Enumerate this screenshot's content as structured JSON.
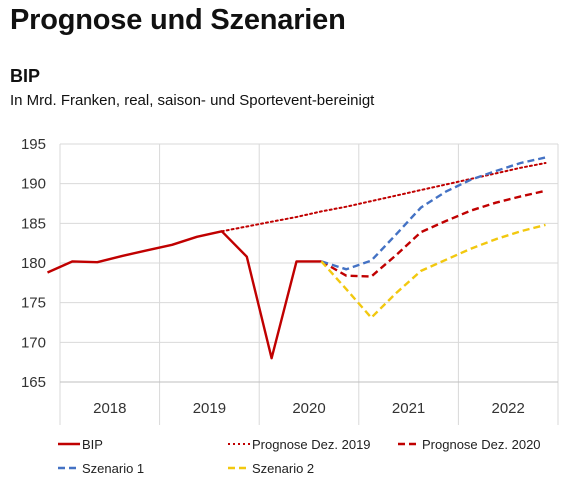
{
  "page": {
    "title": "Prognose und Szenarien"
  },
  "chart_data": {
    "type": "line",
    "title": "BIP",
    "subtitle": "In Mrd. Franken, real, saison- und Sportevent-bereinigt",
    "xlabel": "",
    "ylabel": "",
    "x_tick_labels": [
      "2018",
      "2019",
      "2020",
      "2021",
      "2022"
    ],
    "ylim": [
      165,
      195
    ],
    "y_ticks": [
      165,
      170,
      175,
      180,
      185,
      190,
      195
    ],
    "grid": true,
    "legend_position": "bottom",
    "series": [
      {
        "name": "BIP",
        "color": "#c00000",
        "style": "solid",
        "x": [
          "2017-Q4",
          "2018-Q1",
          "2018-Q2",
          "2018-Q3",
          "2018-Q4",
          "2019-Q1",
          "2019-Q2",
          "2019-Q3",
          "2019-Q4",
          "2020-Q1",
          "2020-Q2",
          "2020-Q3"
        ],
        "values": [
          178.8,
          180.2,
          180.1,
          180.9,
          181.6,
          182.3,
          183.3,
          184.0,
          180.8,
          168.0,
          180.2,
          180.2
        ]
      },
      {
        "name": "Prognose Dez. 2019",
        "color": "#c00000",
        "style": "dotted",
        "x": [
          "2019-Q3",
          "2019-Q4",
          "2020-Q1",
          "2020-Q2",
          "2020-Q3",
          "2020-Q4",
          "2021-Q1",
          "2021-Q2",
          "2021-Q3",
          "2021-Q4",
          "2022-Q1",
          "2022-Q2",
          "2022-Q3",
          "2022-Q4"
        ],
        "values": [
          184.0,
          184.6,
          185.2,
          185.8,
          186.5,
          187.1,
          187.8,
          188.5,
          189.2,
          189.9,
          190.6,
          191.3,
          192.0,
          192.6
        ]
      },
      {
        "name": "Prognose Dez. 2020",
        "color": "#c00000",
        "style": "dashed",
        "x": [
          "2020-Q3",
          "2020-Q4",
          "2021-Q1",
          "2021-Q2",
          "2021-Q3",
          "2021-Q4",
          "2022-Q1",
          "2022-Q2",
          "2022-Q3",
          "2022-Q4"
        ],
        "values": [
          180.2,
          178.4,
          178.3,
          181.0,
          183.9,
          185.3,
          186.6,
          187.6,
          188.4,
          189.1
        ]
      },
      {
        "name": "Szenario 1",
        "color": "#4472c4",
        "style": "dashed",
        "x": [
          "2020-Q3",
          "2020-Q4",
          "2021-Q1",
          "2021-Q2",
          "2021-Q3",
          "2021-Q4",
          "2022-Q1",
          "2022-Q2",
          "2022-Q3",
          "2022-Q4"
        ],
        "values": [
          180.2,
          179.2,
          180.3,
          183.6,
          187.0,
          189.0,
          190.5,
          191.6,
          192.6,
          193.3
        ]
      },
      {
        "name": "Szenario 2",
        "color": "#f2c80f",
        "style": "dashed",
        "x": [
          "2020-Q3",
          "2020-Q4",
          "2021-Q1",
          "2021-Q2",
          "2021-Q3",
          "2021-Q4",
          "2022-Q1",
          "2022-Q2",
          "2022-Q3",
          "2022-Q4"
        ],
        "values": [
          180.2,
          176.7,
          173.1,
          176.2,
          179.0,
          180.4,
          181.8,
          183.0,
          184.0,
          184.8
        ]
      }
    ]
  }
}
